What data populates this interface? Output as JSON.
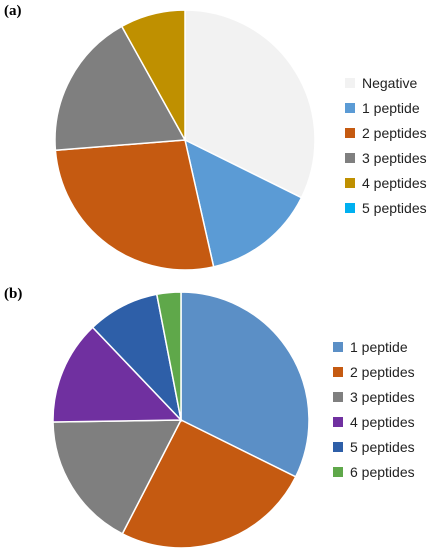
{
  "chart_data": [
    {
      "type": "pie",
      "panel_label": "(a)",
      "legend_position": "right",
      "slices": [
        {
          "label": "Negative",
          "value": 32,
          "color": "#F2F2F2"
        },
        {
          "label": "1 peptide",
          "value": 14,
          "color": "#5B9BD5"
        },
        {
          "label": "2 peptides",
          "value": 27,
          "color": "#C55A11"
        },
        {
          "label": "3 peptides",
          "value": 18,
          "color": "#7F7F7F"
        },
        {
          "label": "4 peptides",
          "value": 8,
          "color": "#BF9000"
        },
        {
          "label": "5 peptides",
          "value": 0,
          "color": "#00B0F0"
        }
      ]
    },
    {
      "type": "pie",
      "panel_label": "(b)",
      "legend_position": "right",
      "slices": [
        {
          "label": "1 peptide",
          "value": 32,
          "color": "#5B8FC6"
        },
        {
          "label": "2 peptides",
          "value": 25,
          "color": "#C55A11"
        },
        {
          "label": "3 peptides",
          "value": 17,
          "color": "#7F7F7F"
        },
        {
          "label": "4 peptides",
          "value": 13,
          "color": "#7030A0"
        },
        {
          "label": "5 peptides",
          "value": 9,
          "color": "#2E5FA8"
        },
        {
          "label": "6 peptides",
          "value": 3,
          "color": "#5FA84A"
        }
      ]
    }
  ]
}
